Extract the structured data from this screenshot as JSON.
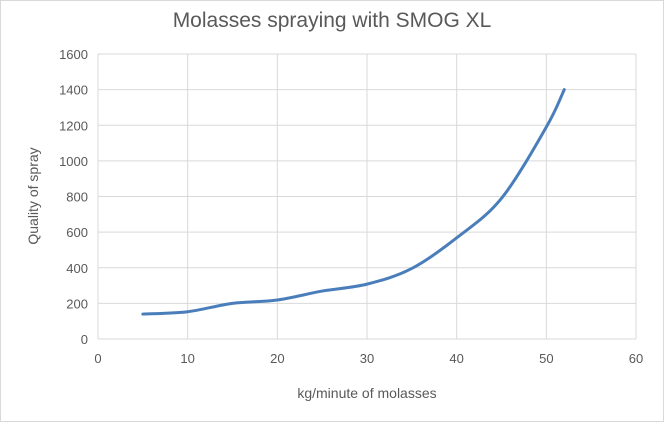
{
  "chart_data": {
    "type": "line",
    "title": "Molasses spraying with SMOG XL",
    "xlabel": "kg/minute of molasses",
    "ylabel": "Quality of spray",
    "xlim": [
      0,
      60
    ],
    "ylim": [
      0,
      1600
    ],
    "xticks": [
      0,
      10,
      20,
      30,
      40,
      50,
      60
    ],
    "yticks": [
      0,
      200,
      400,
      600,
      800,
      1000,
      1200,
      1400,
      1600
    ],
    "grid": true,
    "legend": "none",
    "series": [
      {
        "name": "Quality of spray",
        "color": "#4a7ebb",
        "x": [
          5,
          10,
          15,
          20,
          25,
          30,
          35,
          40,
          45,
          50,
          52
        ],
        "y": [
          140,
          153,
          200,
          219,
          269,
          308,
          396,
          568,
          790,
          1190,
          1400
        ]
      }
    ]
  }
}
